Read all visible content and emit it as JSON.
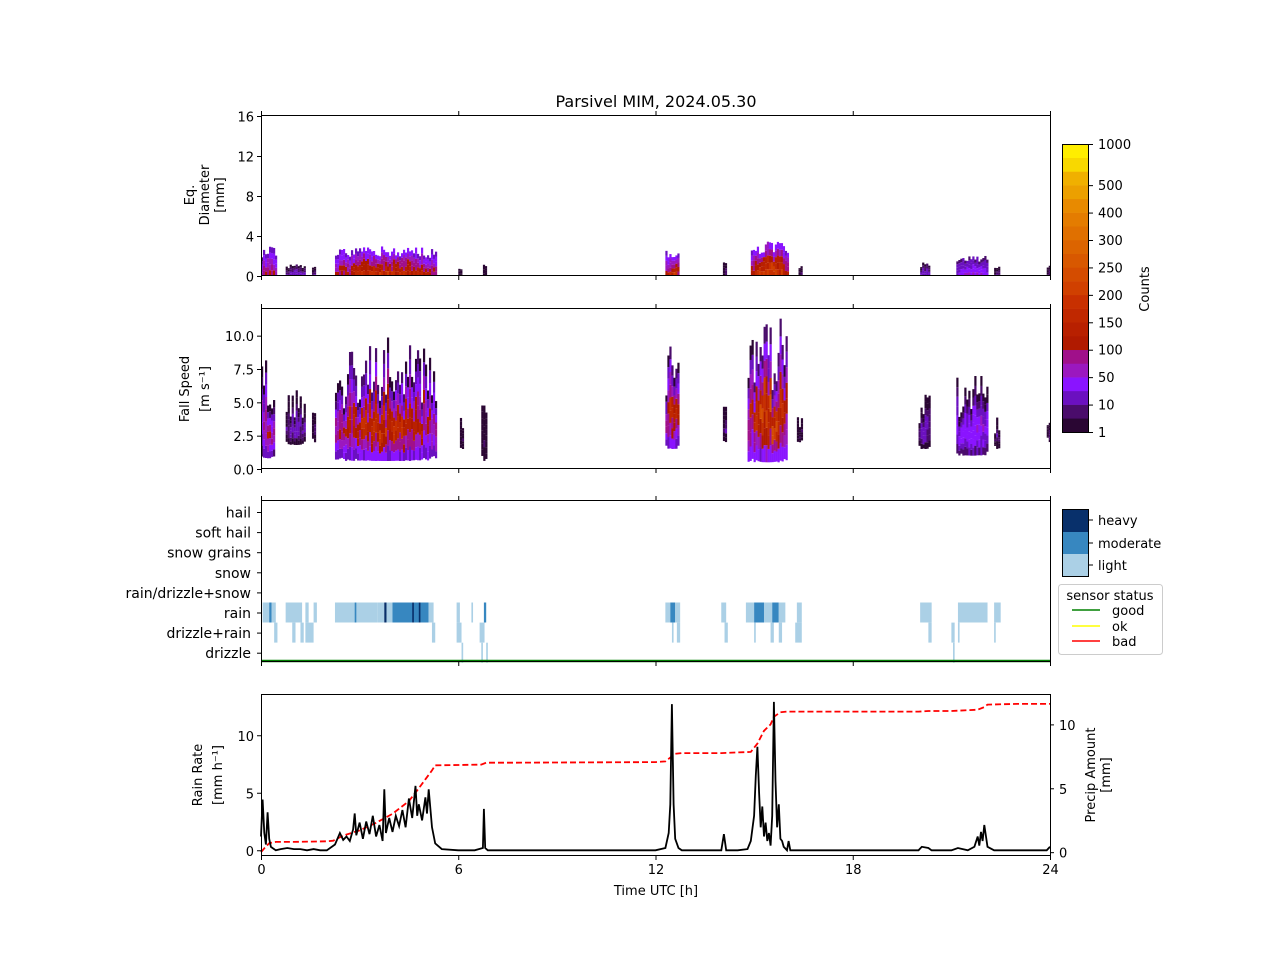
{
  "title": "Parsivel MIM, 2024.05.30",
  "xaxis": {
    "label": "Time UTC [h]",
    "range": [
      0,
      24
    ],
    "ticks": [
      "0",
      "6",
      "12",
      "18",
      "24"
    ]
  },
  "colorbar": {
    "label": "Counts",
    "tick_labels": [
      "1",
      "10",
      "50",
      "100",
      "150",
      "200",
      "250",
      "300",
      "400",
      "500",
      "1000"
    ],
    "levels": [
      1,
      5,
      10,
      25,
      50,
      75,
      100,
      125,
      150,
      175,
      200,
      225,
      250,
      275,
      300,
      350,
      400,
      450,
      500,
      750,
      1000
    ],
    "colors": [
      "#2a0633",
      "#4a0c6b",
      "#6b10c0",
      "#8a14ff",
      "#9b18bf",
      "#a0108a",
      "#b01a00",
      "#b82000",
      "#c02800",
      "#c83000",
      "#d04000",
      "#d44c00",
      "#d85800",
      "#dc6400",
      "#e07000",
      "#e47c00",
      "#e88a00",
      "#eca000",
      "#f0b000",
      "#f8d800",
      "#ffee00"
    ]
  },
  "panel_labels": {
    "diameter": [
      "Eq.",
      "Diameter",
      "[mm]"
    ],
    "fallspeed": [
      "Fall Speed",
      "[m s⁻¹]"
    ],
    "rainrate": [
      "Rain Rate",
      "[mm h⁻¹]"
    ],
    "precip": [
      "Precip Amount",
      "[mm]"
    ]
  },
  "tick_labels": {
    "diameter": [
      "0",
      "4",
      "8",
      "12",
      "16"
    ],
    "fallspeed": [
      "0.0",
      "2.5",
      "5.0",
      "7.5",
      "10.0"
    ],
    "rainrate": [
      "0",
      "5",
      "10"
    ],
    "precip": [
      "0",
      "5",
      "10"
    ]
  },
  "intensity_legend": [
    {
      "label": "heavy",
      "color": "#08306b"
    },
    {
      "label": "moderate",
      "color": "#3787c0"
    },
    {
      "label": "light",
      "color": "#abd0e6"
    }
  ],
  "sensor_legend": {
    "title": "sensor status",
    "items": [
      {
        "label": "good",
        "color": "#008000"
      },
      {
        "label": "ok",
        "color": "#ffff00"
      },
      {
        "label": "bad",
        "color": "#ff0000"
      }
    ]
  },
  "chart_data": [
    {
      "type": "heatmap",
      "panel": "diameter",
      "ylabel": "Eq. Diameter [mm]",
      "ylim": [
        0,
        16
      ],
      "yticks": [
        0,
        4,
        8,
        12,
        16
      ],
      "zlabel": "Counts",
      "events": [
        {
          "t0": 0.0,
          "t1": 0.45,
          "dmax": 3.0,
          "peak": 120
        },
        {
          "t0": 0.75,
          "t1": 1.35,
          "dmax": 1.2,
          "peak": 20
        },
        {
          "t0": 1.55,
          "t1": 1.65,
          "dmax": 1.0,
          "peak": 10
        },
        {
          "t0": 2.25,
          "t1": 5.3,
          "dmax": 3.0,
          "peak": 200
        },
        {
          "t0": 6.0,
          "t1": 6.1,
          "dmax": 0.8,
          "peak": 5
        },
        {
          "t0": 6.75,
          "t1": 6.85,
          "dmax": 1.3,
          "peak": 5
        },
        {
          "t0": 12.3,
          "t1": 12.7,
          "dmax": 2.8,
          "peak": 200
        },
        {
          "t0": 14.05,
          "t1": 14.15,
          "dmax": 1.7,
          "peak": 10
        },
        {
          "t0": 14.9,
          "t1": 16.0,
          "dmax": 3.5,
          "peak": 250
        },
        {
          "t0": 16.35,
          "t1": 16.45,
          "dmax": 1.0,
          "peak": 5
        },
        {
          "t0": 20.05,
          "t1": 20.35,
          "dmax": 1.5,
          "peak": 20
        },
        {
          "t0": 21.15,
          "t1": 22.1,
          "dmax": 2.2,
          "peak": 60
        },
        {
          "t0": 22.3,
          "t1": 22.45,
          "dmax": 1.0,
          "peak": 10
        },
        {
          "t0": 23.9,
          "t1": 24.0,
          "dmax": 1.3,
          "peak": 10
        }
      ]
    },
    {
      "type": "heatmap",
      "panel": "fallspeed",
      "ylabel": "Fall Speed [m s⁻¹]",
      "ylim": [
        0,
        12
      ],
      "yticks": [
        0,
        2.5,
        5.0,
        7.5,
        10.0
      ],
      "zlabel": "Counts",
      "events": [
        {
          "t0": 0.0,
          "t1": 0.4,
          "vmin": 0.8,
          "vmax": 9.0,
          "peak": 120
        },
        {
          "t0": 0.75,
          "t1": 1.35,
          "vmin": 1.8,
          "vmax": 6.0,
          "peak": 20
        },
        {
          "t0": 1.55,
          "t1": 1.65,
          "vmin": 2.0,
          "vmax": 5.0,
          "peak": 10
        },
        {
          "t0": 2.25,
          "t1": 5.3,
          "vmin": 0.6,
          "vmax": 10.0,
          "peak": 200
        },
        {
          "t0": 6.05,
          "t1": 6.15,
          "vmin": 1.5,
          "vmax": 4.5,
          "peak": 5
        },
        {
          "t0": 6.7,
          "t1": 6.85,
          "vmin": 0.6,
          "vmax": 6.0,
          "peak": 5
        },
        {
          "t0": 12.3,
          "t1": 12.7,
          "vmin": 1.5,
          "vmax": 9.5,
          "peak": 200
        },
        {
          "t0": 14.05,
          "t1": 14.15,
          "vmin": 2.0,
          "vmax": 6.0,
          "peak": 10
        },
        {
          "t0": 14.8,
          "t1": 16.0,
          "vmin": 0.5,
          "vmax": 12.0,
          "peak": 250
        },
        {
          "t0": 16.3,
          "t1": 16.45,
          "vmin": 2.0,
          "vmax": 4.5,
          "peak": 5
        },
        {
          "t0": 20.0,
          "t1": 20.35,
          "vmin": 1.5,
          "vmax": 6.0,
          "peak": 20
        },
        {
          "t0": 21.15,
          "t1": 22.1,
          "vmin": 1.0,
          "vmax": 8.0,
          "peak": 60
        },
        {
          "t0": 22.3,
          "t1": 22.45,
          "vmin": 1.5,
          "vmax": 4.0,
          "peak": 10
        },
        {
          "t0": 23.9,
          "t1": 24.0,
          "vmin": 2.0,
          "vmax": 5.0,
          "peak": 10
        }
      ]
    },
    {
      "type": "heatmap",
      "panel": "precip_type",
      "categories": [
        "drizzle",
        "drizzle+rain",
        "rain",
        "rain/drizzle+snow",
        "snow",
        "snow grains",
        "soft hail",
        "hail"
      ],
      "legend_levels": [
        "heavy",
        "moderate",
        "light"
      ],
      "segments": [
        {
          "category": "rain",
          "t0": 0.05,
          "t1": 0.25,
          "level": "light"
        },
        {
          "category": "rain",
          "t0": 0.25,
          "t1": 0.32,
          "level": "moderate"
        },
        {
          "category": "rain",
          "t0": 0.32,
          "t1": 0.45,
          "level": "light"
        },
        {
          "category": "rain",
          "t0": 0.75,
          "t1": 1.25,
          "level": "light"
        },
        {
          "category": "rain",
          "t0": 1.35,
          "t1": 1.45,
          "level": "light"
        },
        {
          "category": "rain",
          "t0": 1.6,
          "t1": 1.7,
          "level": "light"
        },
        {
          "category": "rain",
          "t0": 2.25,
          "t1": 3.55,
          "level": "light"
        },
        {
          "category": "rain",
          "t0": 2.85,
          "t1": 2.9,
          "level": "moderate"
        },
        {
          "category": "rain",
          "t0": 3.55,
          "t1": 3.75,
          "level": "light"
        },
        {
          "category": "rain",
          "t0": 3.75,
          "t1": 3.82,
          "level": "heavy"
        },
        {
          "category": "rain",
          "t0": 3.82,
          "t1": 4.2,
          "level": "light"
        },
        {
          "category": "rain",
          "t0": 4.0,
          "t1": 5.1,
          "level": "moderate"
        },
        {
          "category": "rain",
          "t0": 4.6,
          "t1": 4.65,
          "level": "heavy"
        },
        {
          "category": "rain",
          "t0": 4.8,
          "t1": 4.85,
          "level": "heavy"
        },
        {
          "category": "rain",
          "t0": 5.1,
          "t1": 5.25,
          "level": "light"
        },
        {
          "category": "rain",
          "t0": 5.95,
          "t1": 6.05,
          "level": "light"
        },
        {
          "category": "rain",
          "t0": 6.4,
          "t1": 6.45,
          "level": "light"
        },
        {
          "category": "rain",
          "t0": 6.78,
          "t1": 6.85,
          "level": "moderate"
        },
        {
          "category": "rain",
          "t0": 12.3,
          "t1": 12.45,
          "level": "light"
        },
        {
          "category": "rain",
          "t0": 12.45,
          "t1": 12.6,
          "level": "moderate"
        },
        {
          "category": "rain",
          "t0": 12.6,
          "t1": 12.75,
          "level": "light"
        },
        {
          "category": "rain",
          "t0": 14.0,
          "t1": 14.15,
          "level": "light"
        },
        {
          "category": "rain",
          "t0": 14.75,
          "t1": 15.0,
          "level": "light"
        },
        {
          "category": "rain",
          "t0": 15.0,
          "t1": 15.3,
          "level": "moderate"
        },
        {
          "category": "rain",
          "t0": 15.3,
          "t1": 15.55,
          "level": "light"
        },
        {
          "category": "rain",
          "t0": 15.55,
          "t1": 15.75,
          "level": "moderate"
        },
        {
          "category": "rain",
          "t0": 15.75,
          "t1": 15.95,
          "level": "light"
        },
        {
          "category": "rain",
          "t0": 16.3,
          "t1": 16.45,
          "level": "light"
        },
        {
          "category": "rain",
          "t0": 20.05,
          "t1": 20.4,
          "level": "light"
        },
        {
          "category": "rain",
          "t0": 21.2,
          "t1": 22.1,
          "level": "light"
        },
        {
          "category": "rain",
          "t0": 22.3,
          "t1": 22.5,
          "level": "light"
        },
        {
          "category": "drizzle+rain",
          "t0": 0.4,
          "t1": 0.5,
          "level": "light"
        },
        {
          "category": "drizzle+rain",
          "t0": 0.95,
          "t1": 1.05,
          "level": "light"
        },
        {
          "category": "drizzle+rain",
          "t0": 1.2,
          "t1": 1.3,
          "level": "light"
        },
        {
          "category": "drizzle+rain",
          "t0": 1.35,
          "t1": 1.6,
          "level": "light"
        },
        {
          "category": "drizzle+rain",
          "t0": 5.2,
          "t1": 5.3,
          "level": "light"
        },
        {
          "category": "drizzle+rain",
          "t0": 5.95,
          "t1": 6.1,
          "level": "light"
        },
        {
          "category": "drizzle+rain",
          "t0": 6.65,
          "t1": 6.8,
          "level": "light"
        },
        {
          "category": "drizzle+rain",
          "t0": 12.5,
          "t1": 12.55,
          "level": "light"
        },
        {
          "category": "drizzle+rain",
          "t0": 12.65,
          "t1": 12.75,
          "level": "light"
        },
        {
          "category": "drizzle+rain",
          "t0": 14.1,
          "t1": 14.2,
          "level": "light"
        },
        {
          "category": "drizzle+rain",
          "t0": 15.0,
          "t1": 15.05,
          "level": "light"
        },
        {
          "category": "drizzle+rain",
          "t0": 15.5,
          "t1": 15.6,
          "level": "light"
        },
        {
          "category": "drizzle+rain",
          "t0": 15.75,
          "t1": 15.85,
          "level": "light"
        },
        {
          "category": "drizzle+rain",
          "t0": 16.25,
          "t1": 16.45,
          "level": "light"
        },
        {
          "category": "drizzle+rain",
          "t0": 20.3,
          "t1": 20.4,
          "level": "light"
        },
        {
          "category": "drizzle+rain",
          "t0": 21.0,
          "t1": 21.1,
          "level": "light"
        },
        {
          "category": "drizzle+rain",
          "t0": 21.2,
          "t1": 21.25,
          "level": "light"
        },
        {
          "category": "drizzle+rain",
          "t0": 22.3,
          "t1": 22.35,
          "level": "light"
        },
        {
          "category": "drizzle",
          "t0": 6.1,
          "t1": 6.15,
          "level": "light"
        },
        {
          "category": "drizzle",
          "t0": 6.7,
          "t1": 6.75,
          "level": "light"
        },
        {
          "category": "drizzle",
          "t0": 6.85,
          "t1": 6.9,
          "level": "light"
        },
        {
          "category": "drizzle",
          "t0": 21.05,
          "t1": 21.1,
          "level": "light"
        }
      ],
      "sensor_status": {
        "value": "good",
        "t0": 0,
        "t1": 24
      }
    },
    {
      "type": "line",
      "panel": "rain",
      "series": [
        {
          "name": "",
          "axis": "left",
          "ylim": [
            -0.5,
            13.5
          ],
          "x": [
            0,
            0.05,
            0.1,
            0.15,
            0.2,
            0.25,
            0.3,
            0.35,
            0.4,
            0.45,
            0.6,
            0.8,
            1.0,
            1.2,
            1.4,
            1.6,
            1.8,
            2.0,
            2.25,
            2.4,
            2.5,
            2.6,
            2.7,
            2.8,
            2.85,
            2.9,
            3.0,
            3.1,
            3.2,
            3.3,
            3.4,
            3.5,
            3.6,
            3.7,
            3.75,
            3.8,
            3.9,
            4.0,
            4.1,
            4.2,
            4.3,
            4.4,
            4.5,
            4.6,
            4.7,
            4.75,
            4.8,
            4.9,
            5.0,
            5.05,
            5.1,
            5.2,
            5.3,
            5.5,
            6.0,
            6.5,
            6.75,
            6.78,
            6.82,
            6.9,
            8.0,
            10.0,
            12.0,
            12.3,
            12.4,
            12.45,
            12.5,
            12.55,
            12.6,
            12.7,
            12.8,
            13.5,
            14.0,
            14.08,
            14.15,
            14.5,
            14.8,
            14.9,
            15.0,
            15.05,
            15.1,
            15.15,
            15.2,
            15.25,
            15.3,
            15.35,
            15.4,
            15.45,
            15.5,
            15.55,
            15.6,
            15.65,
            15.7,
            15.75,
            15.8,
            15.85,
            15.9,
            16.0,
            16.05,
            16.1,
            16.3,
            17.0,
            19.0,
            20.0,
            20.1,
            20.3,
            20.4,
            21.0,
            21.2,
            21.5,
            21.7,
            21.8,
            21.85,
            21.9,
            21.95,
            22.0,
            22.1,
            22.3,
            23.0,
            23.9,
            24.0
          ],
          "y": [
            1.2,
            4.4,
            1.5,
            0.5,
            3.3,
            1.0,
            0.3,
            0.2,
            0.1,
            0.0,
            0.1,
            0.2,
            0.1,
            0.1,
            0.0,
            0.1,
            0.0,
            0.0,
            0.5,
            1.5,
            0.9,
            1.2,
            0.8,
            1.8,
            3.2,
            1.3,
            2.4,
            1.0,
            2.5,
            1.4,
            3.0,
            1.2,
            2.2,
            0.8,
            5.3,
            1.5,
            2.8,
            1.6,
            3.0,
            2.1,
            3.5,
            2.0,
            4.5,
            2.8,
            5.6,
            3.0,
            4.0,
            2.6,
            4.6,
            3.2,
            5.3,
            2.0,
            0.6,
            0.1,
            0.0,
            0.0,
            0.2,
            3.6,
            0.2,
            0.0,
            0.0,
            0.0,
            0.0,
            0.2,
            1.5,
            4.0,
            12.7,
            4.0,
            1.0,
            0.2,
            0.0,
            0.0,
            0.0,
            1.4,
            0.0,
            0.0,
            0.1,
            0.8,
            3.0,
            6.5,
            9.0,
            5.0,
            2.0,
            3.8,
            1.2,
            2.4,
            0.8,
            1.5,
            0.4,
            3.0,
            12.9,
            6.0,
            2.0,
            4.0,
            1.0,
            0.8,
            0.3,
            0.0,
            0.8,
            0.0,
            0.0,
            0.0,
            0.0,
            0.0,
            0.3,
            0.2,
            0.0,
            0.0,
            0.2,
            0.0,
            0.3,
            1.2,
            0.4,
            1.6,
            0.8,
            2.2,
            0.3,
            0.0,
            0.0,
            0.0,
            0.3
          ]
        },
        {
          "name": "",
          "axis": "right",
          "style": "dashed",
          "color": "#ff0000",
          "ylim": [
            -0.3,
            12.3
          ],
          "x": [
            0,
            0.1,
            0.25,
            0.45,
            1.0,
            2.0,
            2.2,
            2.5,
            3.0,
            3.5,
            4.0,
            4.5,
            4.8,
            5.0,
            5.2,
            5.3,
            6.0,
            6.7,
            6.85,
            7.5,
            12.0,
            12.3,
            12.45,
            12.6,
            12.8,
            14.0,
            14.9,
            15.1,
            15.3,
            15.5,
            15.6,
            15.8,
            16.0,
            17.0,
            20.0,
            20.3,
            21.0,
            21.8,
            22.0,
            22.1,
            23.0,
            24.0
          ],
          "y": [
            0.0,
            0.3,
            0.7,
            0.8,
            0.8,
            0.85,
            0.9,
            1.3,
            1.7,
            2.3,
            3.0,
            4.0,
            5.0,
            5.7,
            6.4,
            6.8,
            6.82,
            6.85,
            7.0,
            7.0,
            7.05,
            7.1,
            7.4,
            7.7,
            7.75,
            7.75,
            7.85,
            8.5,
            9.5,
            10.0,
            10.6,
            10.95,
            11.0,
            11.0,
            11.0,
            11.05,
            11.05,
            11.15,
            11.35,
            11.55,
            11.6,
            11.6
          ]
        }
      ]
    }
  ]
}
